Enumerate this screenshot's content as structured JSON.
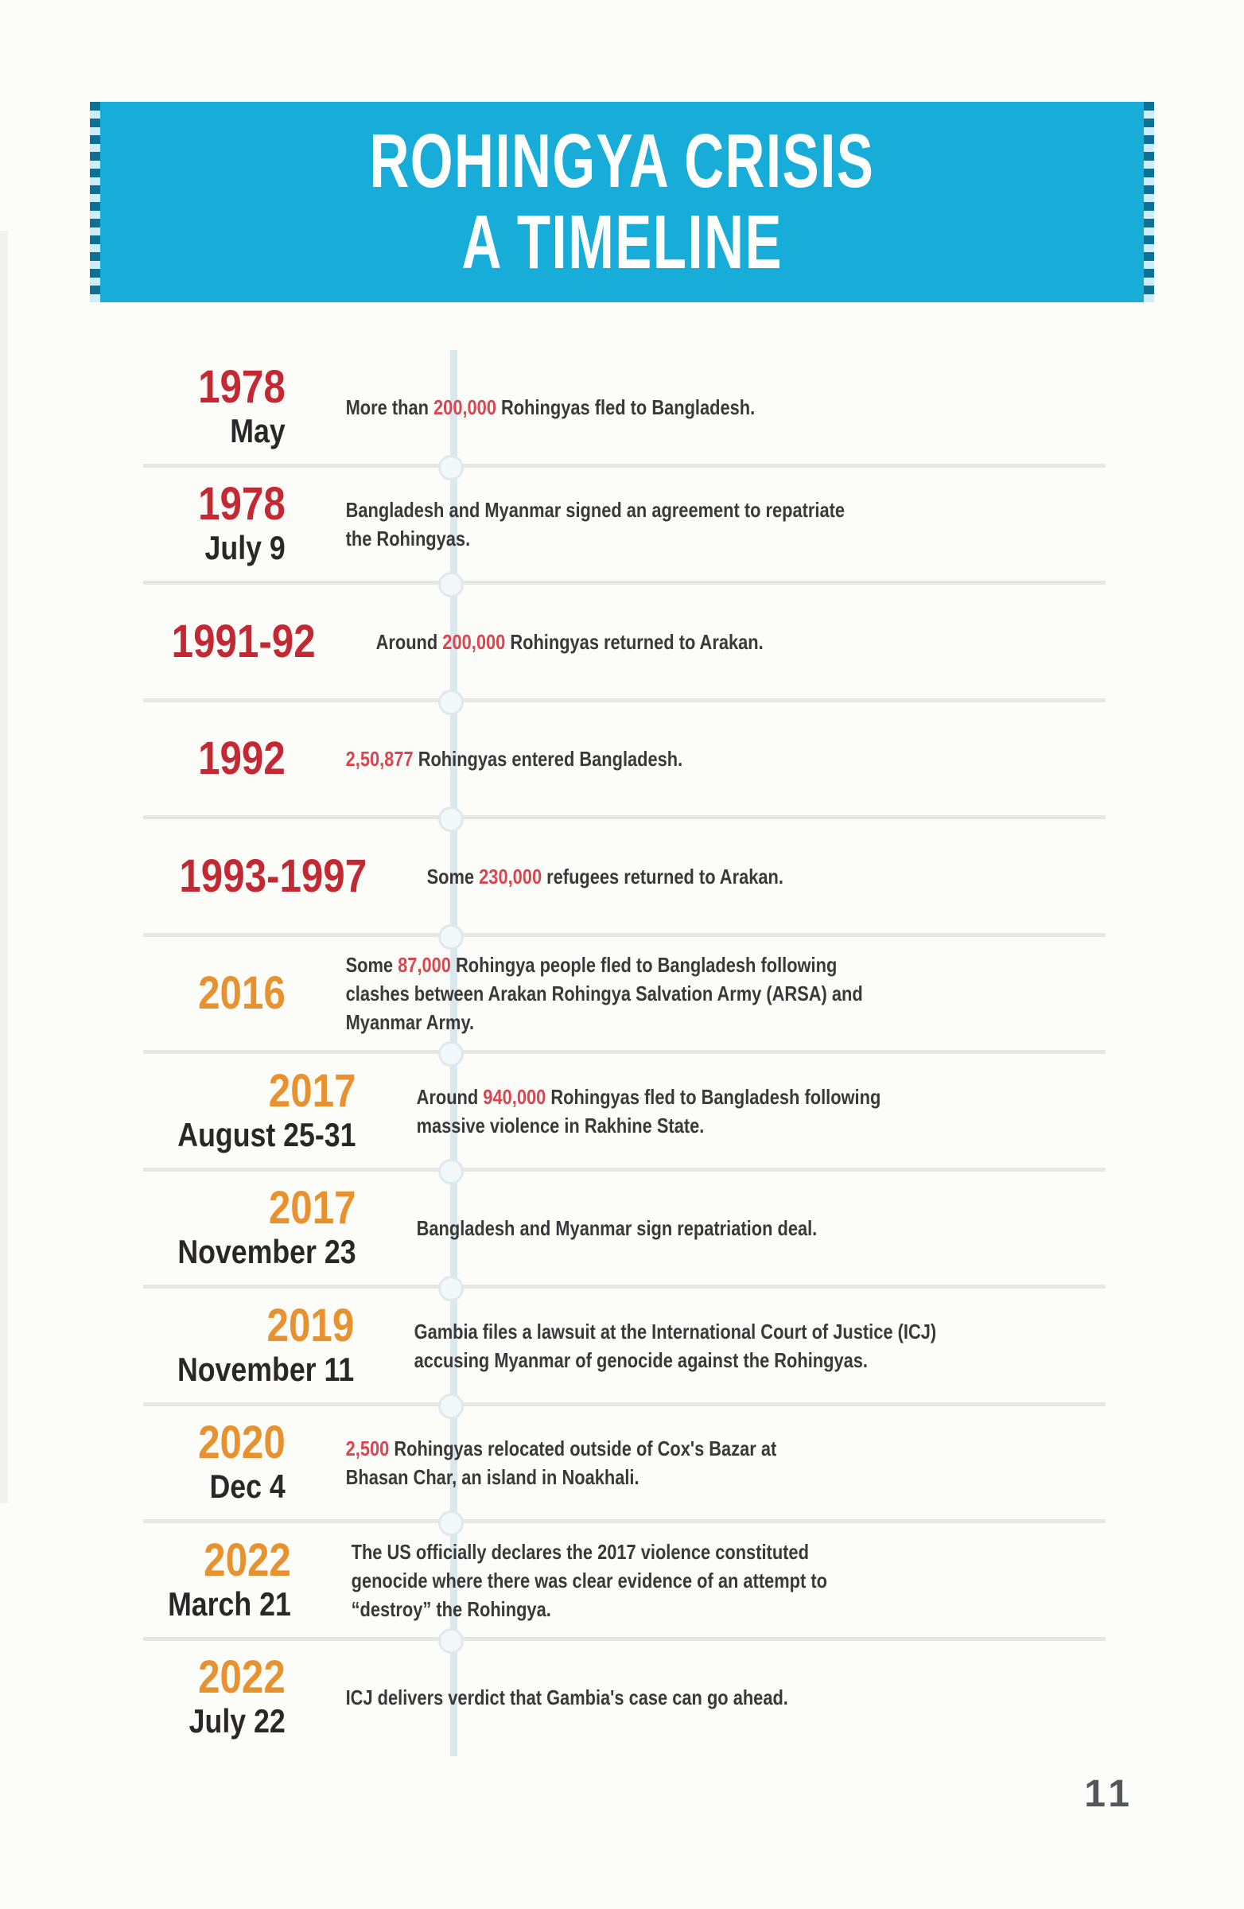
{
  "banner": {
    "title_line1": "ROHINGYA CRISIS",
    "title_line2": "A TIMELINE"
  },
  "colors": {
    "banner_bg": "#18acd9",
    "date_red": "#c42832",
    "date_orange": "#e8912f",
    "highlight_red": "#d8474f"
  },
  "timeline": {
    "entries": [
      {
        "year": "1978",
        "sub": "May",
        "accent": "red",
        "parts": [
          {
            "text": "More than "
          },
          {
            "text": "200,000",
            "highlight": true
          },
          {
            "text": " Rohingyas fled to Bangladesh."
          }
        ]
      },
      {
        "year": "1978",
        "sub": "July 9",
        "accent": "red",
        "parts": [
          {
            "text": "Bangladesh and Myanmar signed an agreement to repatriate\nthe Rohingyas."
          }
        ]
      },
      {
        "year": "1991-92",
        "sub": "",
        "accent": "red",
        "parts": [
          {
            "text": "Around "
          },
          {
            "text": "200,000",
            "highlight": true
          },
          {
            "text": " Rohingyas returned to Arakan."
          }
        ]
      },
      {
        "year": "1992",
        "sub": "",
        "accent": "red",
        "parts": [
          {
            "text": "2,50,877",
            "highlight": true
          },
          {
            "text": " Rohingyas entered Bangladesh."
          }
        ]
      },
      {
        "year": "1993-1997",
        "sub": "",
        "accent": "red",
        "parts": [
          {
            "text": "Some "
          },
          {
            "text": "230,000",
            "highlight": true
          },
          {
            "text": " refugees returned to Arakan."
          }
        ]
      },
      {
        "year": "2016",
        "sub": "",
        "accent": "orange",
        "parts": [
          {
            "text": "Some "
          },
          {
            "text": "87,000",
            "highlight": true
          },
          {
            "text": " Rohingya people fled to Bangladesh following\nclashes between Arakan Rohingya Salvation Army (ARSA) and\nMyanmar Army."
          }
        ]
      },
      {
        "year": "2017",
        "sub": "August 25-31",
        "accent": "orange",
        "parts": [
          {
            "text": "Around "
          },
          {
            "text": "940,000",
            "highlight": true
          },
          {
            "text": " Rohingyas fled to Bangladesh following\nmassive violence in Rakhine State."
          }
        ]
      },
      {
        "year": "2017",
        "sub": "November 23",
        "accent": "orange",
        "parts": [
          {
            "text": "Bangladesh and Myanmar sign repatriation deal."
          }
        ]
      },
      {
        "year": "2019",
        "sub": "November 11",
        "accent": "orange",
        "parts": [
          {
            "text": "Gambia files a lawsuit at the International Court of Justice (ICJ)\naccusing Myanmar of genocide against the Rohingyas."
          }
        ]
      },
      {
        "year": "2020",
        "sub": "Dec 4",
        "accent": "orange",
        "parts": [
          {
            "text": "2,500",
            "highlight": true
          },
          {
            "text": " Rohingyas relocated outside of Cox's Bazar at\nBhasan Char, an island in Noakhali."
          }
        ]
      },
      {
        "year": "2022",
        "sub": "March 21",
        "accent": "orange",
        "parts": [
          {
            "text": "The US officially declares the 2017 violence constituted\ngenocide where there was clear evidence of an attempt to\n“destroy” the Rohingya."
          }
        ]
      },
      {
        "year": "2022",
        "sub": "July 22",
        "accent": "orange",
        "parts": [
          {
            "text": "ICJ delivers verdict that Gambia's case can go ahead."
          }
        ]
      }
    ]
  },
  "page": {
    "number": "11"
  }
}
